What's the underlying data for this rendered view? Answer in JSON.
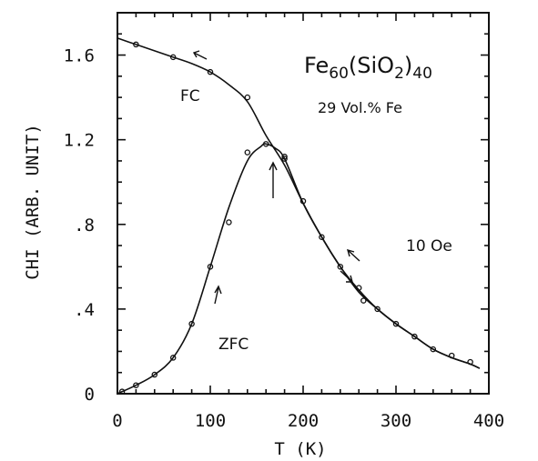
{
  "chart_data": {
    "type": "line",
    "xlabel": "T (K)",
    "ylabel": "CHI (ARB. UNIT)",
    "xlim": [
      0,
      400
    ],
    "ylim": [
      0,
      1.8
    ],
    "xticks": [
      0,
      100,
      200,
      300,
      400
    ],
    "xtick_labels": [
      "0",
      "100",
      "200",
      "300",
      "400"
    ],
    "yticks": [
      0,
      0.4,
      0.8,
      1.2,
      1.6
    ],
    "ytick_labels": [
      "0",
      ".4",
      ".8",
      "1.2",
      "1.6"
    ],
    "grid": false,
    "series": [
      {
        "name": "FC",
        "x": [
          0,
          20,
          40,
          60,
          80,
          100,
          120,
          140,
          160,
          180,
          200,
          220,
          240,
          260,
          280,
          300,
          320,
          340,
          360,
          380,
          390
        ],
        "y": [
          1.68,
          1.65,
          1.62,
          1.59,
          1.56,
          1.52,
          1.46,
          1.38,
          1.22,
          1.08,
          0.9,
          0.74,
          0.6,
          0.49,
          0.4,
          0.33,
          0.27,
          0.21,
          0.17,
          0.14,
          0.12
        ],
        "marker_x": [
          20,
          60,
          100,
          140,
          180
        ],
        "marker_y": [
          1.65,
          1.59,
          1.52,
          1.4,
          1.11
        ]
      },
      {
        "name": "ZFC",
        "x": [
          0,
          20,
          40,
          60,
          80,
          100,
          120,
          140,
          155,
          160,
          170,
          180,
          200,
          220,
          240,
          260,
          280,
          300,
          320,
          340,
          360,
          380,
          390
        ],
        "y": [
          0.0,
          0.04,
          0.09,
          0.17,
          0.33,
          0.6,
          0.88,
          1.1,
          1.17,
          1.18,
          1.16,
          1.11,
          0.9,
          0.74,
          0.6,
          0.48,
          0.4,
          0.33,
          0.27,
          0.21,
          0.17,
          0.14,
          0.12
        ],
        "marker_x": [
          5,
          20,
          40,
          60,
          80,
          100,
          120,
          140,
          160,
          180,
          200,
          220,
          240,
          260,
          265,
          280,
          300,
          320,
          340,
          360,
          380
        ],
        "marker_y": [
          0.01,
          0.04,
          0.09,
          0.17,
          0.33,
          0.6,
          0.81,
          1.14,
          1.18,
          1.12,
          0.91,
          0.74,
          0.6,
          0.5,
          0.44,
          0.4,
          0.33,
          0.27,
          0.21,
          0.18,
          0.15
        ]
      }
    ],
    "annotations": {
      "formula_base": "Fe",
      "formula_sub1": "60",
      "formula_mid": "(SiO",
      "formula_sub2": "2",
      "formula_close": ")",
      "formula_sub3": "40",
      "composition": "29 Vol.% Fe",
      "field": "10 Oe",
      "fc_label": "FC",
      "zfc_label": "ZFC"
    }
  }
}
